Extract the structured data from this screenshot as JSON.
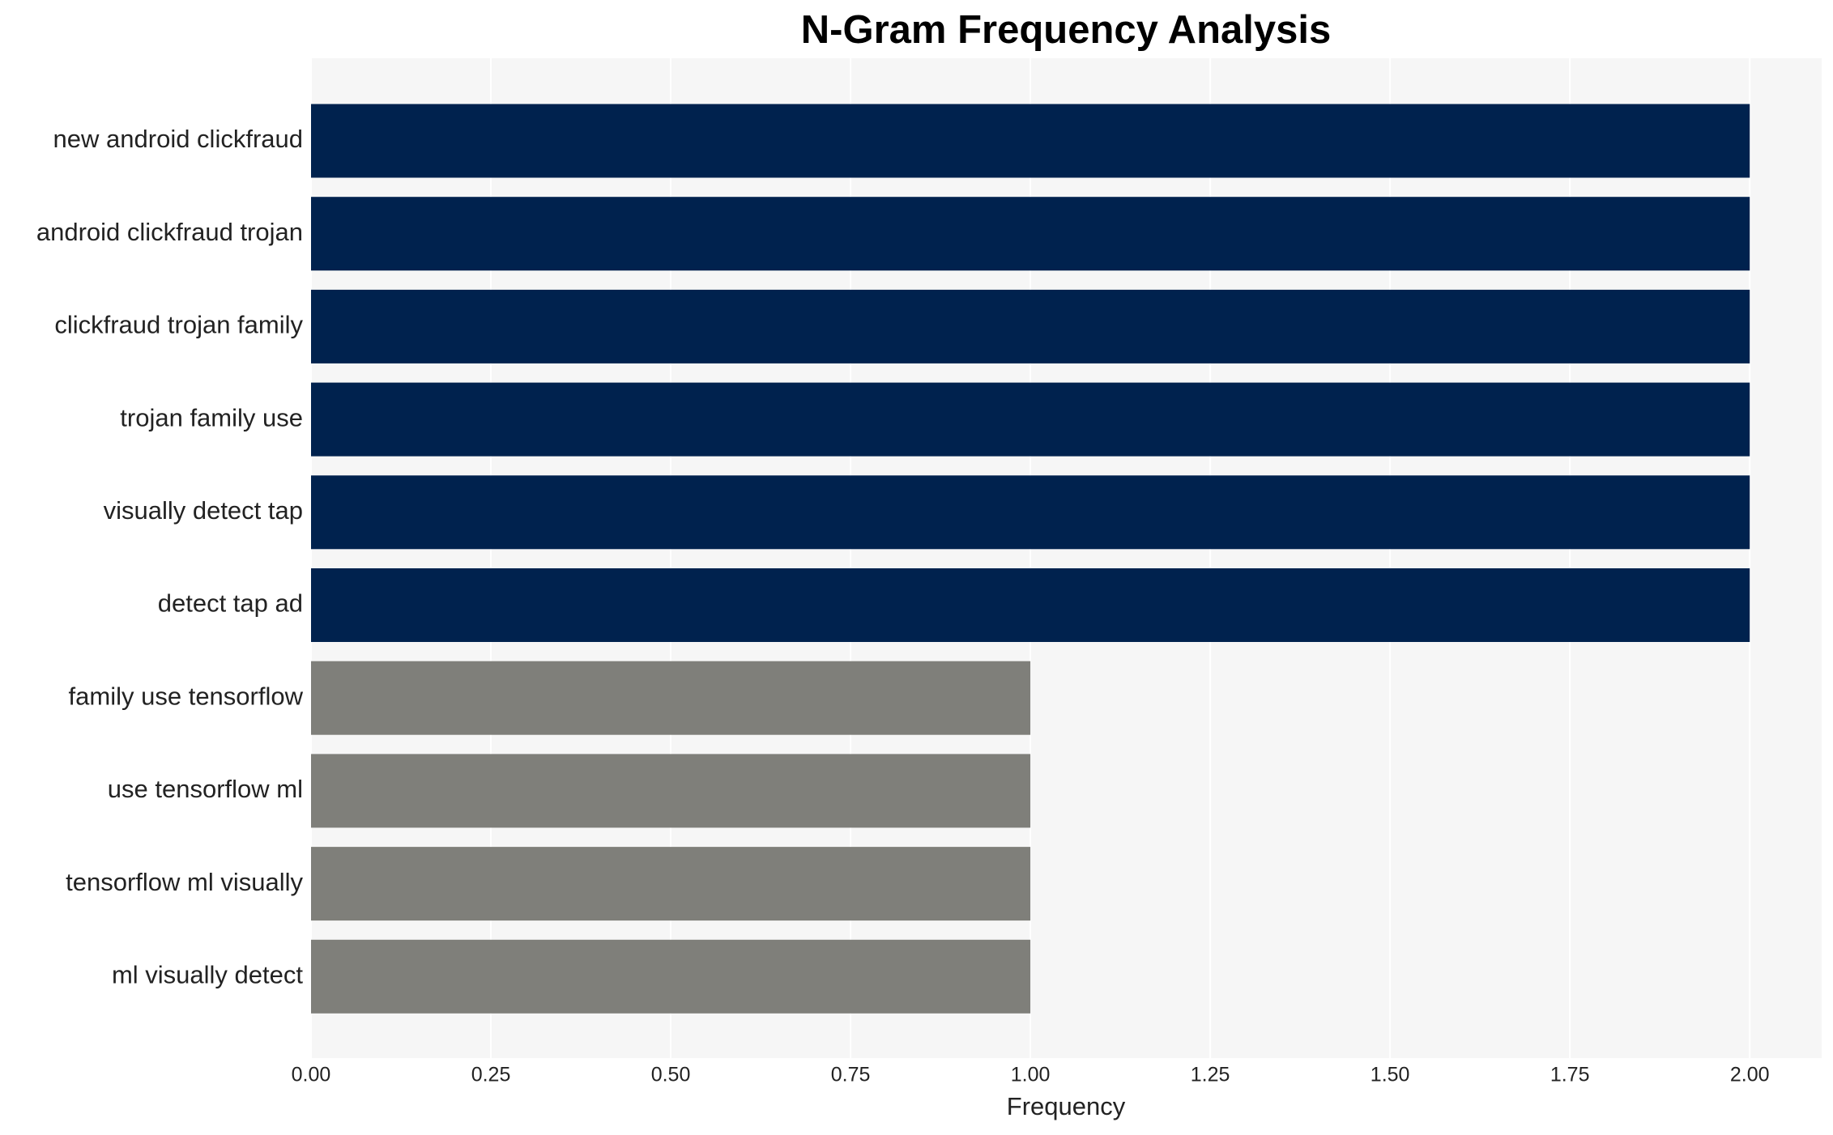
{
  "chart_data": {
    "type": "barh",
    "title": "N-Gram Frequency Analysis",
    "x_label": "Frequency",
    "categories": [
      "new android clickfraud",
      "android clickfraud trojan",
      "clickfraud trojan family",
      "trojan family use",
      "visually detect tap",
      "detect tap ad",
      "family use tensorflow",
      "use tensorflow ml",
      "tensorflow ml visually",
      "ml visually detect"
    ],
    "values": [
      2,
      2,
      2,
      2,
      2,
      2,
      1,
      1,
      1,
      1
    ],
    "colors": [
      "#00224e",
      "#00224e",
      "#00224e",
      "#00224e",
      "#00224e",
      "#00224e",
      "#7f7f7a",
      "#7f7f7a",
      "#7f7f7a",
      "#7f7f7a"
    ],
    "xlim": [
      0,
      2.1
    ],
    "xticks": [
      {
        "value": 0,
        "label": "0.00"
      },
      {
        "value": 0.25,
        "label": "0.25"
      },
      {
        "value": 0.5,
        "label": "0.50"
      },
      {
        "value": 0.75,
        "label": "0.75"
      },
      {
        "value": 1,
        "label": "1.00"
      },
      {
        "value": 1.25,
        "label": "1.25"
      },
      {
        "value": 1.5,
        "label": "1.50"
      },
      {
        "value": 1.75,
        "label": "1.75"
      },
      {
        "value": 2,
        "label": "2.00"
      }
    ],
    "grid": true
  }
}
